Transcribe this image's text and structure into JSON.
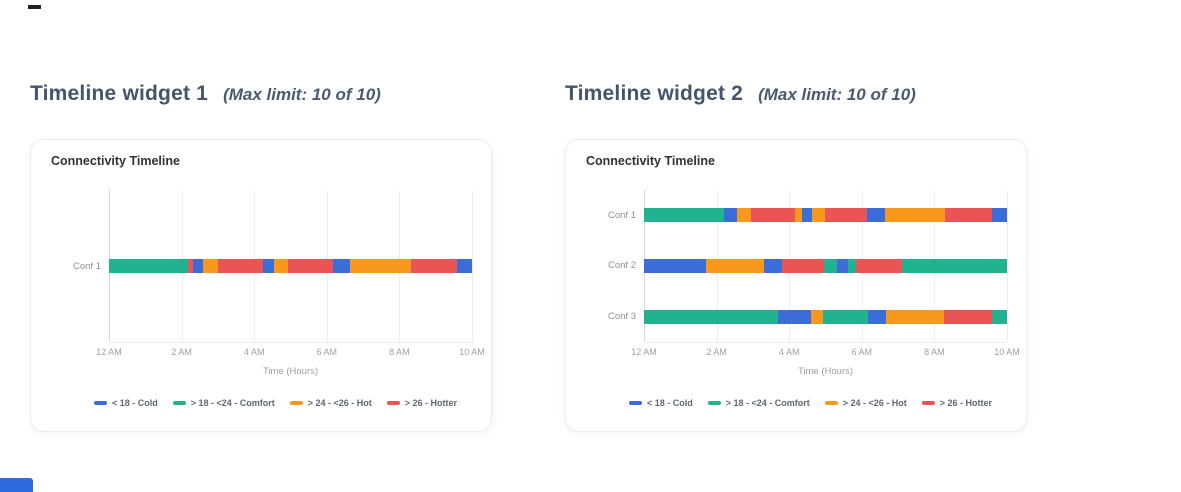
{
  "category_colors": {
    "cold": "#3b6dd8",
    "comfort": "#21b38f",
    "hot": "#f8991d",
    "hotter": "#ea5455"
  },
  "widgets": [
    {
      "title": "Timeline widget 1",
      "limit_note": "(Max limit: 10 of 10)"
    },
    {
      "title": "Timeline widget 2",
      "limit_note": "(Max limit: 10 of 10)"
    }
  ],
  "chart_data": [
    {
      "type": "bar",
      "subtype": "horizontal_stacked_timeline",
      "title": "Connectivity Timeline",
      "xlabel": "Time (Hours)",
      "x_ticks": [
        "12 AM",
        "2 AM",
        "4 AM",
        "6 AM",
        "8 AM",
        "10 AM"
      ],
      "x_range_hours": [
        0,
        10
      ],
      "grid": true,
      "legend_position": "bottom",
      "legend": [
        {
          "key": "cold",
          "label": "< 18 - Cold"
        },
        {
          "key": "comfort",
          "label": "> 18 - <24 - Comfort"
        },
        {
          "key": "hot",
          "label": "> 24 - <26 - Hot"
        },
        {
          "key": "hotter",
          "label": "> 26 - Hotter"
        }
      ],
      "rows": [
        {
          "label": "Conf 1",
          "segments": [
            {
              "c": "comfort",
              "h": 2.17
            },
            {
              "c": "hotter",
              "h": 0.14
            },
            {
              "c": "cold",
              "h": 0.28
            },
            {
              "c": "hot",
              "h": 0.42
            },
            {
              "c": "hotter",
              "h": 1.22
            },
            {
              "c": "cold",
              "h": 0.33
            },
            {
              "c": "hot",
              "h": 0.36
            },
            {
              "c": "hotter",
              "h": 1.25
            },
            {
              "c": "cold",
              "h": 0.47
            },
            {
              "c": "hot",
              "h": 1.69
            },
            {
              "c": "hotter",
              "h": 1.25
            },
            {
              "c": "cold",
              "h": 0.42
            }
          ]
        }
      ]
    },
    {
      "type": "bar",
      "subtype": "horizontal_stacked_timeline",
      "title": "Connectivity Timeline",
      "xlabel": "Time (Hours)",
      "x_ticks": [
        "12 AM",
        "2 AM",
        "4 AM",
        "6 AM",
        "8 AM",
        "10 AM"
      ],
      "x_range_hours": [
        0,
        10
      ],
      "grid": true,
      "legend_position": "bottom",
      "legend": [
        {
          "key": "cold",
          "label": "< 18 - Cold"
        },
        {
          "key": "comfort",
          "label": "> 18 - <24 - Comfort"
        },
        {
          "key": "hot",
          "label": "> 24 - <26 - Hot"
        },
        {
          "key": "hotter",
          "label": "> 26 - Hotter"
        }
      ],
      "rows": [
        {
          "label": "Conf 1",
          "segments": [
            {
              "c": "comfort",
              "h": 2.21
            },
            {
              "c": "cold",
              "h": 0.36
            },
            {
              "c": "hot",
              "h": 0.39
            },
            {
              "c": "hotter",
              "h": 1.19
            },
            {
              "c": "hot",
              "h": 0.19
            },
            {
              "c": "cold",
              "h": 0.28
            },
            {
              "c": "hot",
              "h": 0.36
            },
            {
              "c": "hotter",
              "h": 1.16
            },
            {
              "c": "cold",
              "h": 0.5
            },
            {
              "c": "hot",
              "h": 1.66
            },
            {
              "c": "hotter",
              "h": 1.3
            },
            {
              "c": "cold",
              "h": 0.4
            }
          ]
        },
        {
          "label": "Conf 2",
          "segments": [
            {
              "c": "cold",
              "h": 1.71
            },
            {
              "c": "hot",
              "h": 1.6
            },
            {
              "c": "cold",
              "h": 0.5
            },
            {
              "c": "hotter",
              "h": 1.16
            },
            {
              "c": "comfort",
              "h": 0.36
            },
            {
              "c": "cold",
              "h": 0.3
            },
            {
              "c": "comfort",
              "h": 0.22
            },
            {
              "c": "hotter",
              "h": 1.27
            },
            {
              "c": "comfort",
              "h": 2.88
            }
          ]
        },
        {
          "label": "Conf 3",
          "segments": [
            {
              "c": "comfort",
              "h": 3.7
            },
            {
              "c": "cold",
              "h": 0.91
            },
            {
              "c": "hot",
              "h": 0.33
            },
            {
              "c": "comfort",
              "h": 1.22
            },
            {
              "c": "cold",
              "h": 0.5
            },
            {
              "c": "hot",
              "h": 1.6
            },
            {
              "c": "hotter",
              "h": 1.33
            },
            {
              "c": "comfort",
              "h": 0.41
            }
          ]
        }
      ]
    }
  ],
  "artifacts": {
    "top_left_mark_color": "#222222",
    "bottom_left_bar_color": "#2f6be0"
  }
}
